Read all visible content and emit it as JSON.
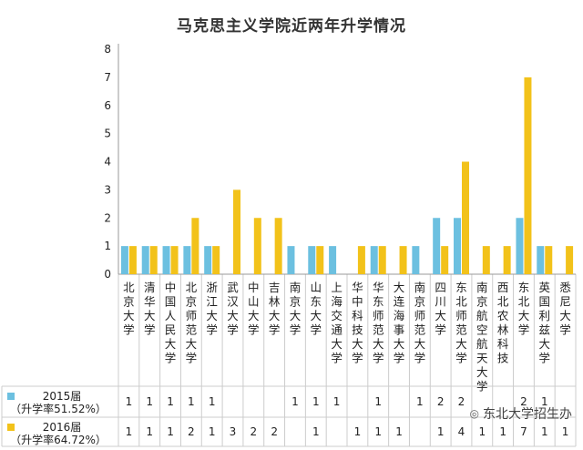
{
  "page": {
    "title": "马克思主义学院近两年升学情况"
  },
  "colors": {
    "series_2015": "#6cc0e0",
    "series_2016": "#f2c21a",
    "axis": "#999999",
    "grid": "#cccccc"
  },
  "chart_data": {
    "type": "bar",
    "title": "马克思主义学院近两年升学情况",
    "xlabel": "",
    "ylabel": "",
    "ylim": [
      0,
      8
    ],
    "yticks": [
      0,
      1,
      2,
      3,
      4,
      5,
      6,
      7,
      8
    ],
    "grid": false,
    "categories": [
      "北京大学",
      "清华大学",
      "中国人民大学",
      "北京师范大学",
      "浙江大学",
      "武汉大学",
      "中山大学",
      "吉林大学",
      "南京大学",
      "山东大学",
      "上海交通大学",
      "华中科技大学",
      "华东师范大学",
      "大连海事大学",
      "南京师范大学",
      "四川大学",
      "东北师范大学",
      "南京航空航天大学",
      "西北农林科技",
      "东北大学",
      "英国利兹大学",
      "悉尼大学"
    ],
    "series": [
      {
        "name": "2015届（升学率51.52%）",
        "label_line1": "2015届",
        "label_line2": "（升学率51.52%）",
        "values": [
          1,
          1,
          1,
          1,
          1,
          null,
          null,
          null,
          1,
          1,
          1,
          null,
          1,
          null,
          1,
          2,
          2,
          null,
          null,
          2,
          1,
          null
        ],
        "table_values": [
          "1",
          "1",
          "1",
          "1",
          "1",
          "",
          "",
          "",
          "1",
          "1",
          "1",
          "",
          "1",
          "",
          "1",
          "2",
          "2",
          "",
          "",
          "2",
          "1",
          ""
        ]
      },
      {
        "name": "2016届（升学率64.72%）",
        "label_line1": "2016届",
        "label_line2": "（升学率64.72%）",
        "values": [
          1,
          1,
          1,
          2,
          1,
          3,
          2,
          2,
          null,
          1,
          null,
          1,
          1,
          1,
          null,
          1,
          4,
          1,
          1,
          7,
          1,
          1
        ],
        "table_values": [
          "1",
          "1",
          "1",
          "2",
          "1",
          "3",
          "2",
          "2",
          "",
          "1",
          "",
          "1",
          "1",
          "1",
          "",
          "1",
          "4",
          "1",
          "1",
          "7",
          "1",
          "1"
        ]
      }
    ]
  },
  "watermark": {
    "icon": "wechat-icon",
    "text": "东北大学招生办"
  }
}
